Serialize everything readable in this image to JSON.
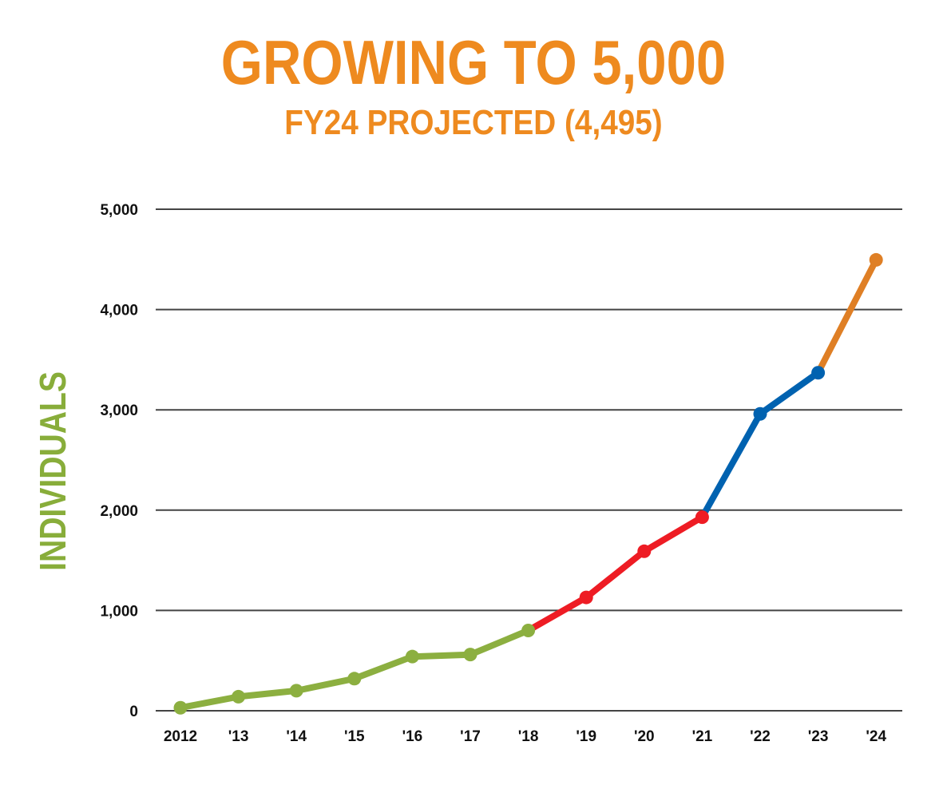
{
  "header": {
    "title": "GROWING TO 5,000",
    "subtitle": "FY24 PROJECTED (4,495)"
  },
  "colors": {
    "title": "#ee8a1f",
    "ylabel": "#88ad3a",
    "gridline": "#444444",
    "segment_2012_2018": "#8caf40",
    "segment_2018_2021": "#ee1c24",
    "segment_2021_2023": "#0062b0",
    "segment_2023_2024": "#df7f25"
  },
  "chart_data": {
    "type": "line",
    "title": "GROWING TO 5,000",
    "subtitle": "FY24 PROJECTED (4,495)",
    "xlabel": "",
    "ylabel": "INDIVIDUALS",
    "categories": [
      "2012",
      "'13",
      "'14",
      "'15",
      "'16",
      "'17",
      "'18",
      "'19",
      "'20",
      "'21",
      "'22",
      "'23",
      "'24"
    ],
    "values": [
      30,
      140,
      200,
      320,
      540,
      560,
      800,
      1130,
      1590,
      1930,
      2960,
      3370,
      4495
    ],
    "y_ticks": [
      0,
      1000,
      2000,
      3000,
      4000,
      5000
    ],
    "y_tick_labels": [
      "0",
      "1,000",
      "2,000",
      "3,000",
      "4,000",
      "5,000"
    ],
    "ylim": [
      0,
      5000
    ],
    "grid": true,
    "legend": "none",
    "segments": [
      {
        "from": 0,
        "to": 6,
        "color": "#8caf40"
      },
      {
        "from": 6,
        "to": 9,
        "color": "#ee1c24"
      },
      {
        "from": 9,
        "to": 11,
        "color": "#0062b0"
      },
      {
        "from": 11,
        "to": 12,
        "color": "#df7f25"
      }
    ]
  }
}
